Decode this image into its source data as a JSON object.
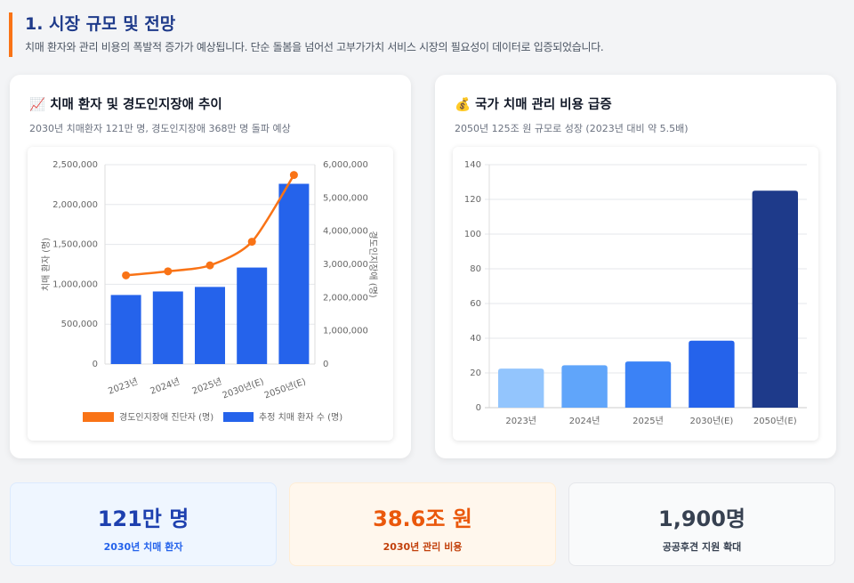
{
  "header": {
    "title": "1. 시장 규모 및 전망",
    "subtitle": "치매 환자와 관리 비용의 폭발적 증가가 예상됩니다. 단순 돌봄을 넘어선 고부가가치 서비스 시장의 필요성이 데이터로 입증되었습니다."
  },
  "cards": [
    {
      "icon": "📈",
      "title": "치매 환자 및 경도인지장애 추이",
      "subtitle": "2030년 치매환자 121만 명, 경도인지장애 368만 명 돌파 예상"
    },
    {
      "icon": "💰",
      "title": "국가 치매 관리 비용 급증",
      "subtitle": "2050년 125조 원 규모로 성장 (2023년 대비 약 5.5배)"
    }
  ],
  "chart_data": [
    {
      "type": "bar+line",
      "categories": [
        "2023년",
        "2024년",
        "2025년",
        "2030년(E)",
        "2050년(E)"
      ],
      "ylabel": "치매 환자 (명)",
      "y2label": "경도인지장애 (명)",
      "ylim": [
        0,
        2500000
      ],
      "y2lim": [
        0,
        6000000
      ],
      "yticks": [
        "0",
        "500,000",
        "1,000,000",
        "1,500,000",
        "2,000,000",
        "2,500,000"
      ],
      "y2ticks": [
        "0",
        "1,000,000",
        "2,000,000",
        "3,000,000",
        "4,000,000",
        "5,000,000",
        "6,000,000"
      ],
      "series": [
        {
          "name": "추정 치매 환자 수 (명)",
          "type": "bar",
          "axis": "left",
          "color": "#2563eb",
          "values": [
            866000,
            910000,
            967000,
            1210000,
            2260000
          ]
        },
        {
          "name": "경도인지장애 진단자 (명)",
          "type": "line",
          "axis": "right",
          "color": "#f97316",
          "values": [
            2670000,
            2790000,
            2970000,
            3680000,
            5690000
          ]
        }
      ],
      "legend": "bottom",
      "grid": true
    },
    {
      "type": "bar",
      "categories": [
        "2023년",
        "2024년",
        "2025년",
        "2030년(E)",
        "2050년(E)"
      ],
      "values": [
        22.5,
        24.4,
        26.6,
        38.6,
        125
      ],
      "ylim": [
        0,
        140
      ],
      "yticks": [
        "0",
        "20",
        "40",
        "60",
        "80",
        "100",
        "120",
        "140"
      ],
      "colors": [
        "#93c5fd",
        "#60a5fa",
        "#3b82f6",
        "#2563eb",
        "#1e3a8a"
      ],
      "grid": true
    }
  ],
  "stats": [
    {
      "value": "121만 명",
      "label": "2030년 치매 환자",
      "bg": "#eff6ff",
      "border": "#dbeafe",
      "color": "#1e40af",
      "labelColor": "#2563eb"
    },
    {
      "value": "38.6조 원",
      "label": "2030년 관리 비용",
      "bg": "#fff7ed",
      "border": "#ffedd5",
      "color": "#ea580c",
      "labelColor": "#c2410c"
    },
    {
      "value": "1,900명",
      "label": "공공후견 지원 확대",
      "bg": "#f9fafb",
      "border": "#e5e7eb",
      "color": "#374151",
      "labelColor": "#374151"
    }
  ]
}
